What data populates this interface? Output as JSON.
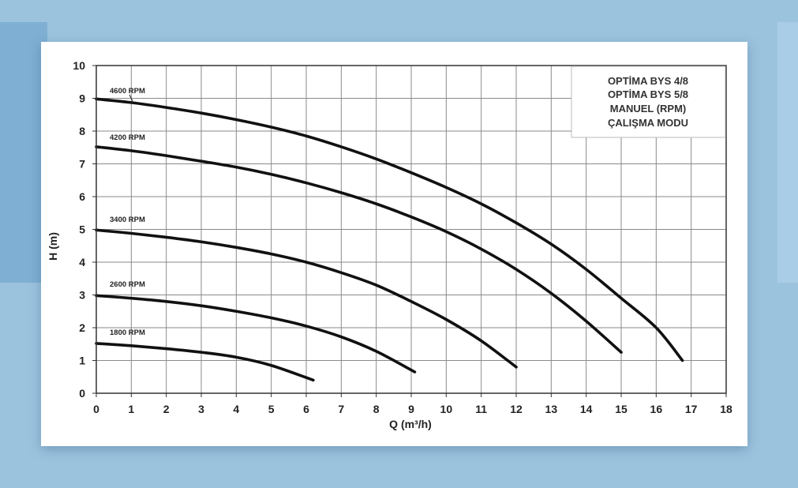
{
  "chart_data": {
    "type": "line",
    "title_lines": [
      "OPTİMA BYS 4/8",
      "OPTİMA BYS 5/8",
      "MANUEL (RPM)",
      "ÇALIŞMA MODU"
    ],
    "xlabel": "Q (m³/h)",
    "ylabel": "H (m)",
    "xlim": [
      0,
      18
    ],
    "ylim": [
      0,
      10
    ],
    "x_ticks": [
      0,
      1,
      2,
      3,
      4,
      5,
      6,
      7,
      8,
      9,
      10,
      11,
      12,
      13,
      14,
      15,
      16,
      17,
      18
    ],
    "y_ticks": [
      0,
      1,
      2,
      3,
      4,
      5,
      6,
      7,
      8,
      9,
      10
    ],
    "grid": true,
    "series": [
      {
        "name": "4600 RPM",
        "x": [
          0,
          1,
          2,
          3,
          4,
          5,
          6,
          7,
          8,
          9,
          10,
          11,
          12,
          13,
          14,
          15,
          16,
          16.75
        ],
        "y": [
          8.98,
          8.87,
          8.72,
          8.55,
          8.35,
          8.12,
          7.85,
          7.52,
          7.15,
          6.73,
          6.28,
          5.78,
          5.2,
          4.55,
          3.78,
          2.9,
          2.0,
          1.0
        ]
      },
      {
        "name": "4200 RPM",
        "x": [
          0,
          1,
          2,
          3,
          4,
          5,
          6,
          7,
          8,
          9,
          10,
          11,
          12,
          13,
          14,
          15
        ],
        "y": [
          7.52,
          7.4,
          7.25,
          7.08,
          6.9,
          6.68,
          6.42,
          6.12,
          5.78,
          5.38,
          4.93,
          4.4,
          3.78,
          3.05,
          2.2,
          1.25
        ]
      },
      {
        "name": "3400 RPM",
        "x": [
          0,
          1,
          2,
          3,
          4,
          5,
          6,
          7,
          8,
          9,
          10,
          11,
          12
        ],
        "y": [
          4.98,
          4.88,
          4.76,
          4.62,
          4.45,
          4.25,
          4.0,
          3.68,
          3.3,
          2.8,
          2.25,
          1.6,
          0.8
        ]
      },
      {
        "name": "2600 RPM",
        "x": [
          0,
          1,
          2,
          3,
          4,
          5,
          6,
          7,
          8,
          9.1
        ],
        "y": [
          2.98,
          2.9,
          2.8,
          2.67,
          2.5,
          2.3,
          2.05,
          1.72,
          1.28,
          0.65
        ]
      },
      {
        "name": "1800 RPM",
        "x": [
          0,
          1,
          2,
          3,
          4,
          5,
          6.2
        ],
        "y": [
          1.52,
          1.45,
          1.36,
          1.25,
          1.1,
          0.85,
          0.4
        ]
      }
    ]
  }
}
